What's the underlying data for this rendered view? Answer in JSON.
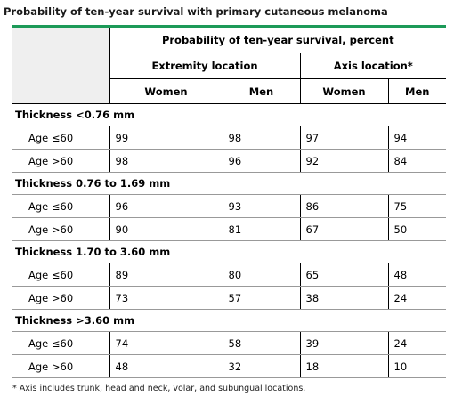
{
  "title": "Probability of ten-year survival with primary cutaneous melanoma",
  "header": {
    "main": "Probability of ten-year survival, percent",
    "groups": [
      "Extremity location",
      "Axis location*"
    ],
    "subs": [
      "Women",
      "Men",
      "Women",
      "Men"
    ]
  },
  "sections": [
    {
      "label": "Thickness <0.76 mm",
      "rows": [
        {
          "age": "Age ≤60",
          "values": [
            "99",
            "98",
            "97",
            "94"
          ]
        },
        {
          "age": "Age >60",
          "values": [
            "98",
            "96",
            "92",
            "84"
          ]
        }
      ]
    },
    {
      "label": "Thickness 0.76 to 1.69 mm",
      "rows": [
        {
          "age": "Age ≤60",
          "values": [
            "96",
            "93",
            "86",
            "75"
          ]
        },
        {
          "age": "Age >60",
          "values": [
            "90",
            "81",
            "67",
            "50"
          ]
        }
      ]
    },
    {
      "label": "Thickness 1.70 to 3.60 mm",
      "rows": [
        {
          "age": "Age ≤60",
          "values": [
            "89",
            "80",
            "65",
            "48"
          ]
        },
        {
          "age": "Age >60",
          "values": [
            "73",
            "57",
            "38",
            "24"
          ]
        }
      ]
    },
    {
      "label": "Thickness >3.60 mm",
      "rows": [
        {
          "age": "Age ≤60",
          "values": [
            "74",
            "58",
            "39",
            "24"
          ]
        },
        {
          "age": "Age >60",
          "values": [
            "48",
            "32",
            "18",
            "10"
          ]
        }
      ]
    }
  ],
  "footnote": "* Axis includes trunk, head and neck, volar, and subungual locations.",
  "colors": {
    "accent": "#1c9a58",
    "corner_bg": "#efefef"
  }
}
